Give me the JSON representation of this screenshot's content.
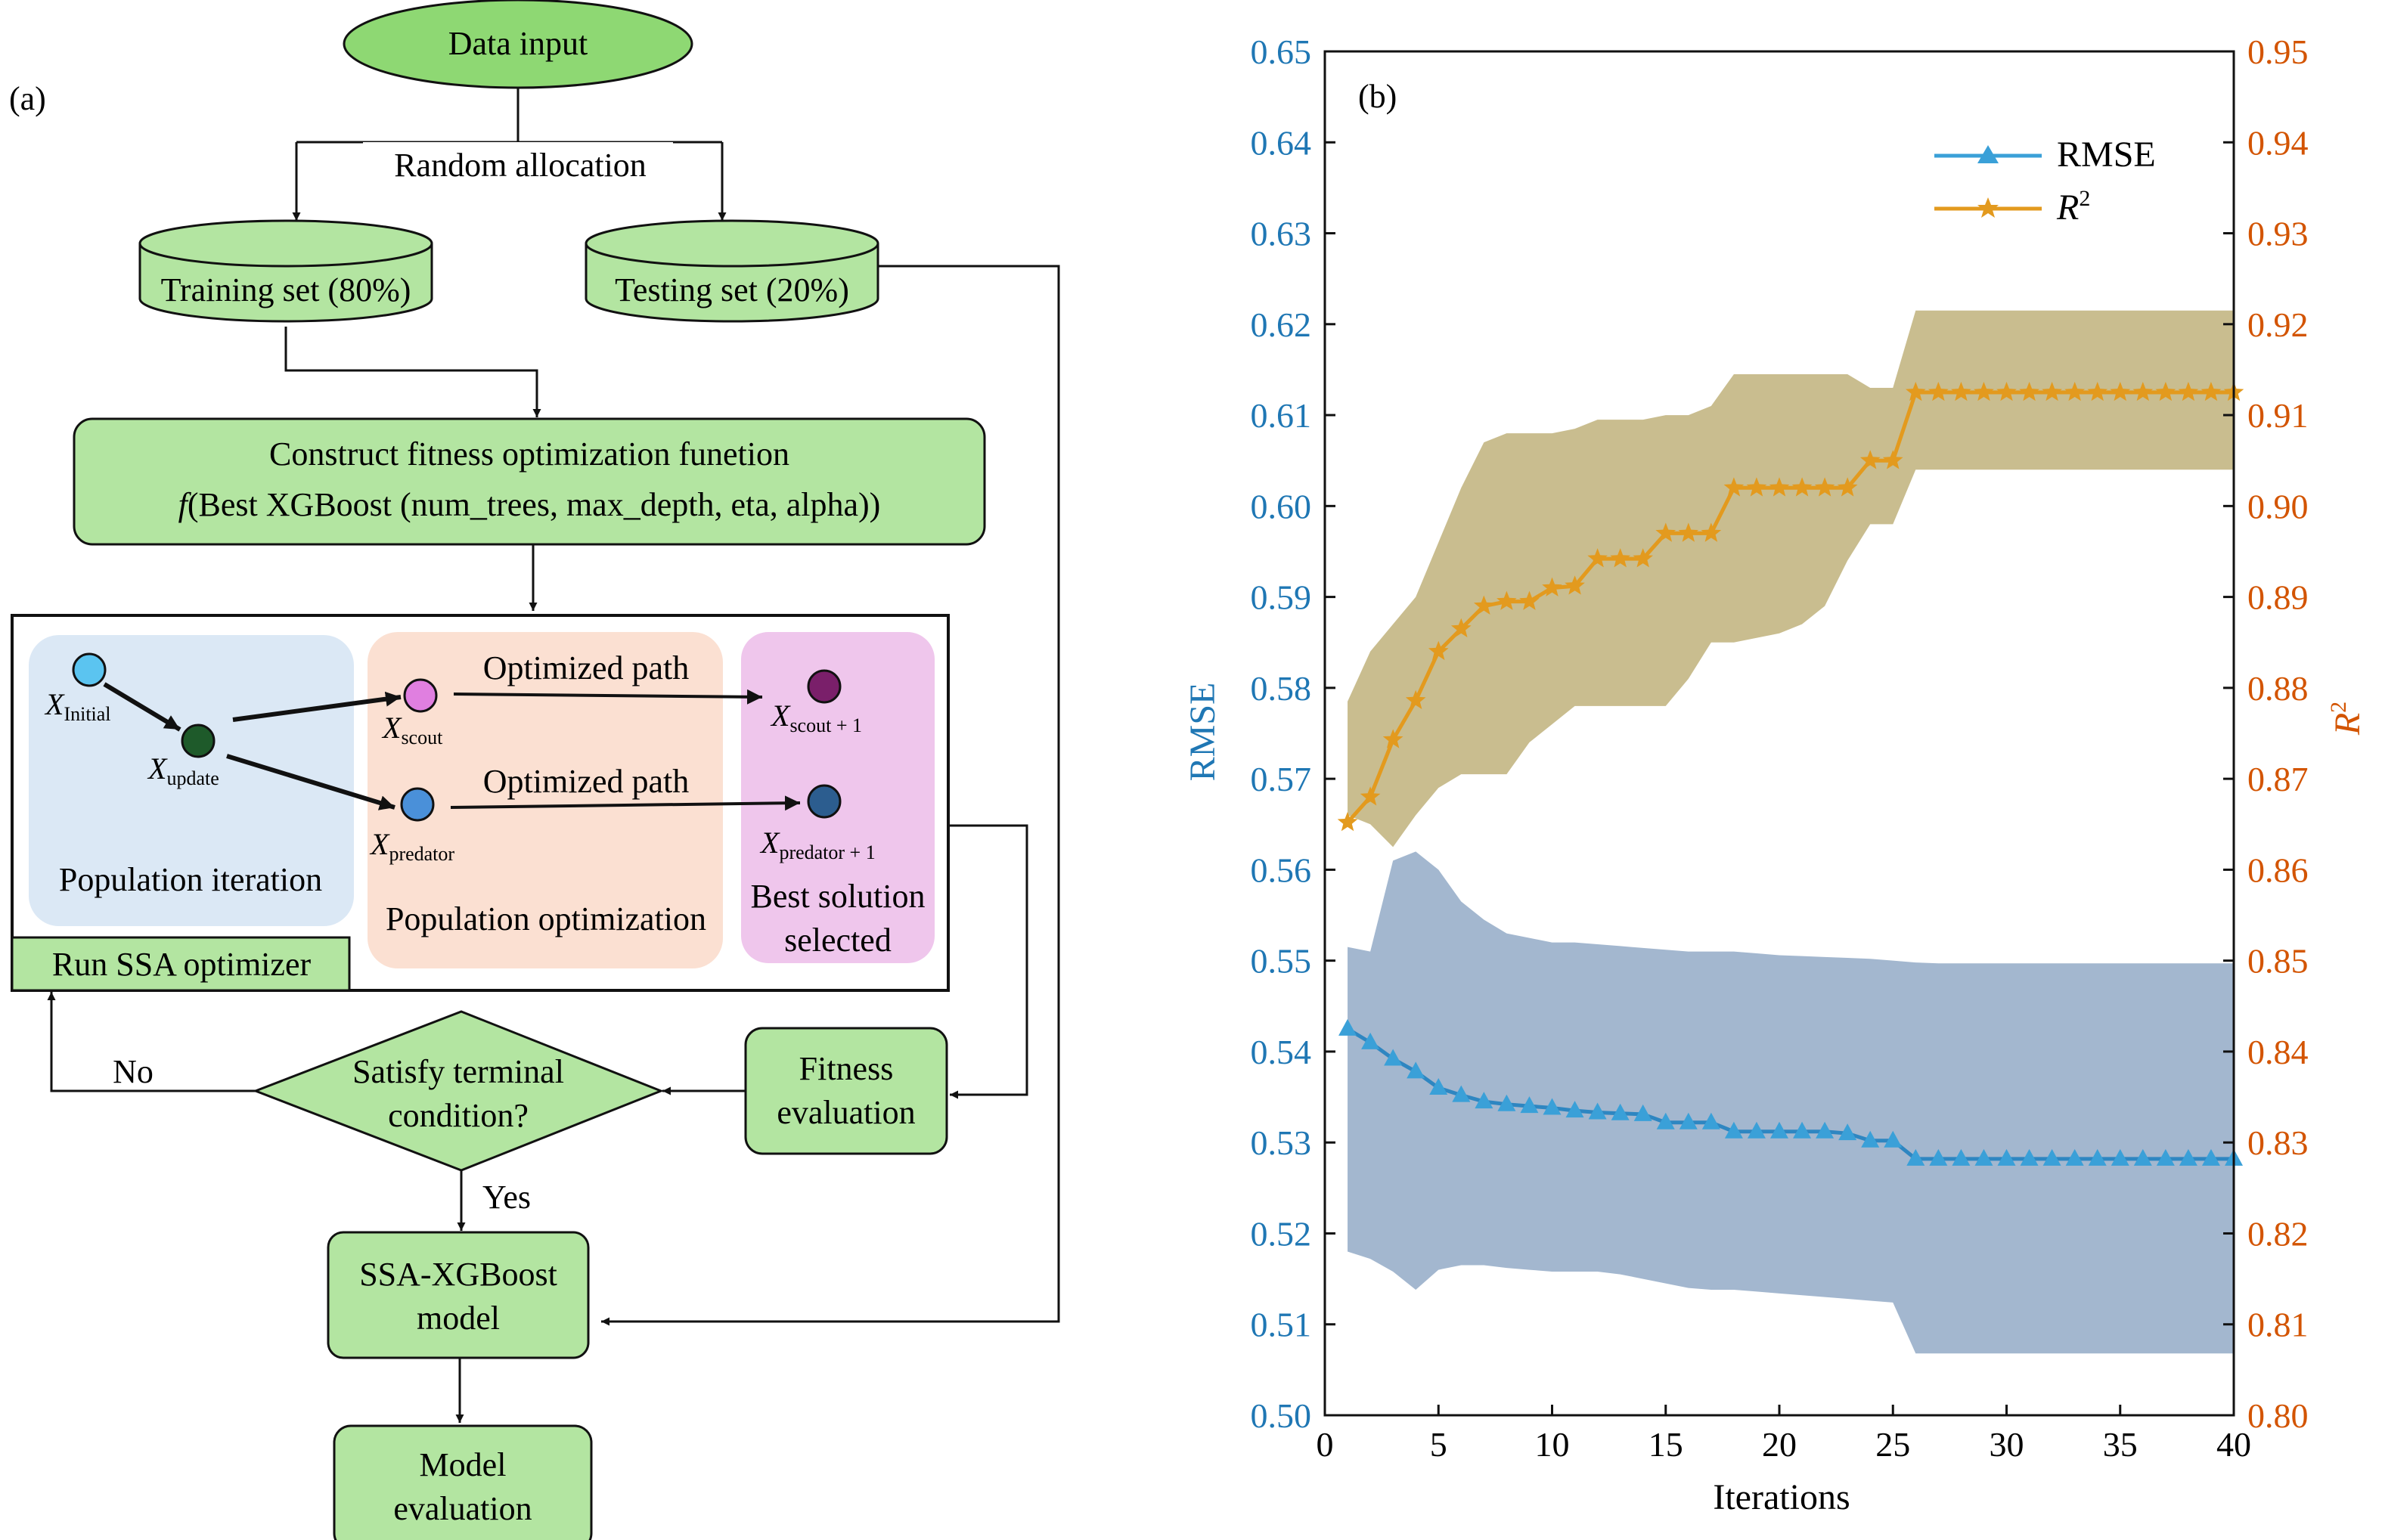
{
  "flow": {
    "panel_label": "(a)",
    "data_input": "Data input",
    "random_allocation": "Random allocation",
    "training_set": "Training set (80%)",
    "testing_set": "Testing set (20%)",
    "fitness_line1": "Construct fitness optimization funetion",
    "fitness_line2_italic": "f",
    "fitness_line2_rest": "(Best XGBoost (num_trees, max_depth, eta, alpha))",
    "ssa": {
      "x_initial": "X",
      "x_initial_sub": "Initial",
      "x_update": "X",
      "x_update_sub": "update",
      "x_scout": "X",
      "x_scout_sub": "scout",
      "x_predator": "X",
      "x_predator_sub": "predator",
      "x_scout1": "X",
      "x_scout1_sub": "scout + 1",
      "x_predator1": "X",
      "x_predator1_sub": "predator + 1",
      "optimized_path_1": "Optimized path",
      "optimized_path_2": "Optimized path",
      "population_iteration": "Population iteration",
      "population_optimization": "Population optimization",
      "best_solution_1": "Best solution",
      "best_solution_2": "selected",
      "run_ssa": "Run SSA optimizer"
    },
    "condition_1": "Satisfy terminal",
    "condition_2": "condition?",
    "no": "No",
    "yes": "Yes",
    "fitness_eval_1": "Fitness",
    "fitness_eval_2": "evaluation",
    "model_1": "SSA-XGBoost",
    "model_2": "model",
    "eval_1": "Model",
    "eval_2": "evaluation",
    "colors": {
      "green_fill": "#b3e5a1",
      "green_dark": "#8ed873",
      "blue_panel": "#dbe8f5",
      "peach_panel": "#fbe0d2",
      "pink_panel": "#efc6ec",
      "node_light_blue": "#5bc4f0",
      "node_dark_green": "#1e5a2a",
      "node_pink": "#e07fe0",
      "node_blue": "#4a90d9",
      "node_purple": "#7a1f6a",
      "node_navy": "#2c5d8f"
    }
  },
  "chart_data": {
    "type": "line",
    "panel_label": "(b)",
    "xlabel": "Iterations",
    "ylabel_left": "RMSE",
    "ylabel_right": "R",
    "ylabel_right_sup": "2",
    "xlim": [
      0,
      40
    ],
    "ylim_left": [
      0.5,
      0.65
    ],
    "ylim_right": [
      0.8,
      0.95
    ],
    "x_ticks": [
      "0",
      "5",
      "10",
      "15",
      "20",
      "25",
      "30",
      "35",
      "40"
    ],
    "y_ticks_left": [
      "0.50",
      "0.51",
      "0.52",
      "0.53",
      "0.54",
      "0.55",
      "0.56",
      "0.57",
      "0.58",
      "0.59",
      "0.60",
      "0.61",
      "0.62",
      "0.63",
      "0.64",
      "0.65"
    ],
    "y_ticks_right": [
      "0.80",
      "0.81",
      "0.82",
      "0.83",
      "0.84",
      "0.85",
      "0.86",
      "0.87",
      "0.88",
      "0.89",
      "0.90",
      "0.91",
      "0.92",
      "0.93",
      "0.94",
      "0.95"
    ],
    "legend": [
      "RMSE",
      "R"
    ],
    "legend_sup": "2",
    "legend_position": "top-right",
    "colors": {
      "rmse": "#2e86c1",
      "rmse_marker": "#3aa0d8",
      "rmse_band": "#a3b7cf",
      "r2": "#e39a1e",
      "r2_band": "#c9bd8f",
      "left_axis": "#1f77b4",
      "right_axis": "#d35400"
    },
    "series": [
      {
        "name": "RMSE",
        "axis": "left",
        "x": [
          1,
          2,
          3,
          4,
          5,
          6,
          7,
          8,
          9,
          10,
          11,
          12,
          13,
          14,
          15,
          16,
          17,
          18,
          19,
          20,
          21,
          22,
          23,
          24,
          25,
          26,
          27,
          28,
          29,
          30,
          31,
          32,
          33,
          34,
          35,
          36,
          37,
          38,
          39,
          40
        ],
        "values": [
          0.5425,
          0.541,
          0.5392,
          0.5378,
          0.536,
          0.5352,
          0.5345,
          0.5342,
          0.534,
          0.5338,
          0.5335,
          0.5333,
          0.5332,
          0.5331,
          0.5322,
          0.5322,
          0.5322,
          0.5312,
          0.5312,
          0.5312,
          0.5312,
          0.5312,
          0.531,
          0.5302,
          0.5302,
          0.5282,
          0.5282,
          0.5282,
          0.5282,
          0.5282,
          0.5282,
          0.5282,
          0.5282,
          0.5282,
          0.5282,
          0.5282,
          0.5282,
          0.5282,
          0.5282,
          0.5282
        ],
        "band_upper": [
          0.5515,
          0.551,
          0.561,
          0.562,
          0.56,
          0.5565,
          0.5545,
          0.553,
          0.5525,
          0.552,
          0.552,
          0.5518,
          0.5516,
          0.5514,
          0.5512,
          0.551,
          0.551,
          0.551,
          0.5508,
          0.5506,
          0.5505,
          0.5504,
          0.5503,
          0.5502,
          0.55,
          0.5498,
          0.5497,
          0.5497,
          0.5497,
          0.5497,
          0.5497,
          0.5497,
          0.5497,
          0.5497,
          0.5497,
          0.5497,
          0.5497,
          0.5497,
          0.5497,
          0.5497
        ],
        "band_lower": [
          0.518,
          0.5172,
          0.5158,
          0.5138,
          0.516,
          0.5165,
          0.5165,
          0.5162,
          0.516,
          0.5158,
          0.5158,
          0.5158,
          0.5155,
          0.515,
          0.5145,
          0.514,
          0.5138,
          0.5138,
          0.5136,
          0.5134,
          0.5132,
          0.513,
          0.5128,
          0.5126,
          0.5124,
          0.5068,
          0.5068,
          0.5068,
          0.5068,
          0.5068,
          0.5068,
          0.5068,
          0.5068,
          0.5068,
          0.5068,
          0.5068,
          0.5068,
          0.5068,
          0.5068,
          0.5068
        ]
      },
      {
        "name": "R",
        "axis": "right",
        "x": [
          1,
          2,
          3,
          4,
          5,
          6,
          7,
          8,
          9,
          10,
          11,
          12,
          13,
          14,
          15,
          16,
          17,
          18,
          19,
          20,
          21,
          22,
          23,
          24,
          25,
          26,
          27,
          28,
          29,
          30,
          31,
          32,
          33,
          34,
          35,
          36,
          37,
          38,
          39,
          40
        ],
        "values": [
          0.8652,
          0.868,
          0.8743,
          0.8786,
          0.884,
          0.8865,
          0.889,
          0.8895,
          0.8895,
          0.891,
          0.8912,
          0.8942,
          0.8942,
          0.8942,
          0.897,
          0.897,
          0.897,
          0.902,
          0.902,
          0.902,
          0.902,
          0.902,
          0.902,
          0.905,
          0.905,
          0.9125,
          0.9125,
          0.9125,
          0.9125,
          0.9125,
          0.9125,
          0.9125,
          0.9125,
          0.9125,
          0.9125,
          0.9125,
          0.9125,
          0.9125,
          0.9125,
          0.9125
        ],
        "band_upper": [
          0.8785,
          0.884,
          0.887,
          0.89,
          0.896,
          0.902,
          0.907,
          0.908,
          0.908,
          0.908,
          0.9085,
          0.9095,
          0.9095,
          0.9095,
          0.91,
          0.91,
          0.911,
          0.9145,
          0.9145,
          0.9145,
          0.9145,
          0.9145,
          0.9145,
          0.913,
          0.913,
          0.9215,
          0.9215,
          0.9215,
          0.9215,
          0.9215,
          0.9215,
          0.9215,
          0.9215,
          0.9215,
          0.9215,
          0.9215,
          0.9215,
          0.9215,
          0.9215,
          0.9215
        ],
        "band_lower": [
          0.866,
          0.865,
          0.8625,
          0.866,
          0.869,
          0.8705,
          0.8705,
          0.8705,
          0.874,
          0.876,
          0.878,
          0.878,
          0.878,
          0.878,
          0.878,
          0.881,
          0.885,
          0.885,
          0.8855,
          0.886,
          0.887,
          0.889,
          0.894,
          0.898,
          0.898,
          0.904,
          0.904,
          0.904,
          0.904,
          0.904,
          0.904,
          0.904,
          0.904,
          0.904,
          0.904,
          0.904,
          0.904,
          0.904,
          0.904,
          0.904
        ]
      }
    ]
  }
}
